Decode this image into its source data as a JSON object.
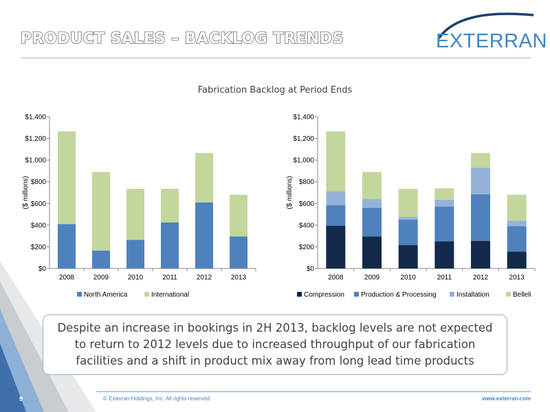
{
  "slide": {
    "title": "PRODUCT SALES – BACKLOG TRENDS",
    "logo_text": "EXTERRAN",
    "page_number": "9",
    "copyright": "© Exterran Holdings, Inc. All rights reserved.",
    "website": "www.exterran.com",
    "callout": "Despite an increase in bookings in 2H 2013, backlog levels are not expected to return to 2012 levels due to increased throughput of our fabrication facilities and a shift in product mix away from long lead time products",
    "colors": {
      "title_stroke": "#6b6b6b",
      "brand_blue": "#3e87c6",
      "rule": "#9ab6d4"
    }
  },
  "chart_heading": "Fabrication Backlog at Period Ends",
  "chart_data": [
    {
      "type": "bar",
      "stacked": true,
      "categories": [
        "2008",
        "2009",
        "2010",
        "2011",
        "2012",
        "2013"
      ],
      "ylabel": "($ millions)",
      "xlabel": "",
      "ylim": [
        0,
        1400
      ],
      "yticks": [
        "$0",
        "$200",
        "$400",
        "$600",
        "$800",
        "$1,000",
        "$1,200",
        "$1,400"
      ],
      "ytick_values": [
        0,
        200,
        400,
        600,
        800,
        1000,
        1200,
        1400
      ],
      "legend_position": "bottom",
      "series": [
        {
          "name": "North America",
          "color": "#4f81bd",
          "values": [
            410,
            165,
            265,
            425,
            610,
            295
          ]
        },
        {
          "name": "International",
          "color": "#c3d69b",
          "values": [
            855,
            725,
            470,
            310,
            455,
            385
          ]
        }
      ]
    },
    {
      "type": "bar",
      "stacked": true,
      "categories": [
        "2008",
        "2009",
        "2010",
        "2011",
        "2012",
        "2013"
      ],
      "ylabel": "($ millions)",
      "xlabel": "",
      "ylim": [
        0,
        1400
      ],
      "yticks": [
        "$0",
        "$200",
        "$400",
        "$600",
        "$800",
        "$1,000",
        "$1,200",
        "$1,400"
      ],
      "ytick_values": [
        0,
        200,
        400,
        600,
        800,
        1000,
        1200,
        1400
      ],
      "legend_position": "bottom",
      "series": [
        {
          "name": "Compression",
          "color": "#132a4a",
          "values": [
            395,
            295,
            215,
            250,
            255,
            155
          ]
        },
        {
          "name": "Production & Processing",
          "color": "#4f81bd",
          "values": [
            190,
            265,
            235,
            320,
            430,
            235
          ]
        },
        {
          "name": "Installation",
          "color": "#95b3d7",
          "values": [
            130,
            80,
            25,
            65,
            245,
            50
          ]
        },
        {
          "name": "Belleli",
          "color": "#c3d69b",
          "values": [
            550,
            250,
            260,
            105,
            135,
            240
          ]
        }
      ]
    }
  ]
}
